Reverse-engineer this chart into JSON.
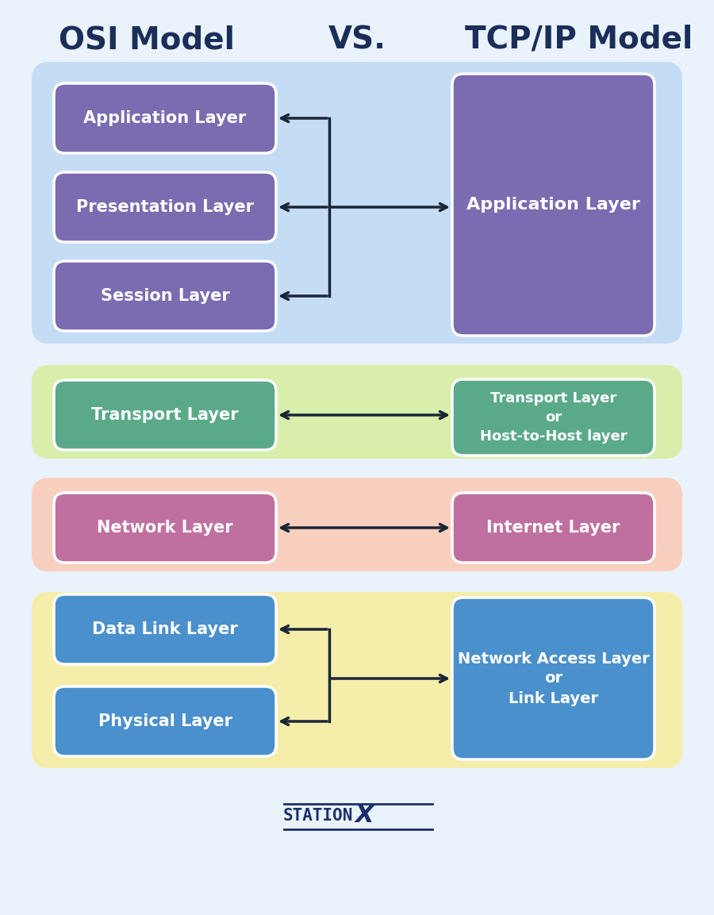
{
  "bg_color": "#eaf2fb",
  "title_color": "#1a2e5a",
  "title_osi": "OSI Model",
  "title_vs": "VS.",
  "title_tcp": "TCP/IP Model",
  "title_fontsize": 28,
  "section1_bg": "#c5dcf5",
  "section1_box_color": "#7b6bb0",
  "section1_right_color": "#7b6bb0",
  "section2_bg": "#d8eeaa",
  "section2_box_color": "#5aaa8a",
  "section2_right_color": "#5aaa8a",
  "section3_bg": "#f9cfc0",
  "section3_box_color": "#c070a0",
  "section3_right_color": "#c070a0",
  "section4_bg": "#f5eeaa",
  "section4_box_color": "#4a90cc",
  "section4_right_color": "#4a90cc",
  "arrow_color": "#1a2535",
  "box_text_color": "#ffffff",
  "logo_color": "#1a2e6a"
}
